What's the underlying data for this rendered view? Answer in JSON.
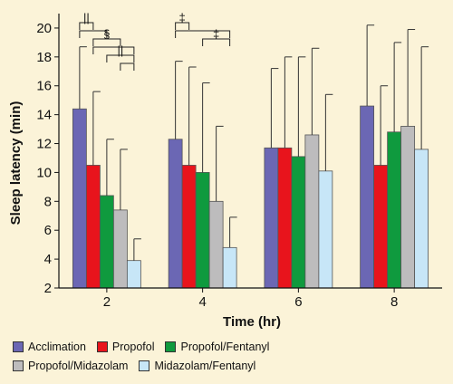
{
  "chart_data": {
    "type": "bar",
    "xlabel": "Time (hr)",
    "ylabel": "Sleep latency (min)",
    "categories": [
      "2",
      "4",
      "6",
      "8"
    ],
    "ylim": [
      2,
      21
    ],
    "yticks": [
      2,
      4,
      6,
      8,
      10,
      12,
      14,
      16,
      18,
      20
    ],
    "series": [
      {
        "name": "Acclimation",
        "color": "#6b67b4",
        "values": [
          14.4,
          12.3,
          11.7,
          14.6
        ],
        "error": [
          4.3,
          5.4,
          5.5,
          5.6
        ]
      },
      {
        "name": "Propofol",
        "color": "#e8141c",
        "values": [
          10.5,
          10.5,
          11.7,
          10.5
        ],
        "error": [
          5.1,
          6.8,
          6.3,
          5.5
        ]
      },
      {
        "name": "Propofol/Fentanyl",
        "color": "#0f9a3e",
        "values": [
          8.4,
          10.0,
          11.1,
          12.8
        ],
        "error": [
          3.9,
          6.2,
          6.9,
          6.2
        ]
      },
      {
        "name": "Propofol/Midazolam",
        "color": "#bdbcbd",
        "values": [
          7.4,
          8.0,
          12.6,
          13.2
        ],
        "error": [
          4.2,
          5.2,
          6.0,
          6.7
        ]
      },
      {
        "name": "Midazolam/Fentanyl",
        "color": "#c7e6f7",
        "values": [
          3.9,
          4.8,
          10.1,
          11.6
        ],
        "error": [
          1.5,
          2.1,
          5.3,
          7.1
        ]
      }
    ],
    "annotations": [
      {
        "category": 0,
        "from": 0,
        "to": 1,
        "symbol": "||"
      },
      {
        "category": 0,
        "from": 0,
        "to": 2,
        "symbol": ""
      },
      {
        "category": 0,
        "from": 1,
        "to": 3,
        "symbol": "§"
      },
      {
        "category": 0,
        "from": 1,
        "to": 4,
        "symbol": ""
      },
      {
        "category": 0,
        "from": 2,
        "to": 4,
        "symbol": "||"
      },
      {
        "category": 0,
        "from": 3,
        "to": 4,
        "symbol": ""
      },
      {
        "category": 1,
        "from": 0,
        "to": 1,
        "symbol": "‡"
      },
      {
        "category": 1,
        "from": 0,
        "to": 4,
        "symbol": ""
      },
      {
        "category": 1,
        "from": 2,
        "to": 4,
        "symbol": "‡"
      }
    ],
    "grid": false,
    "legend_position": "bottom"
  }
}
